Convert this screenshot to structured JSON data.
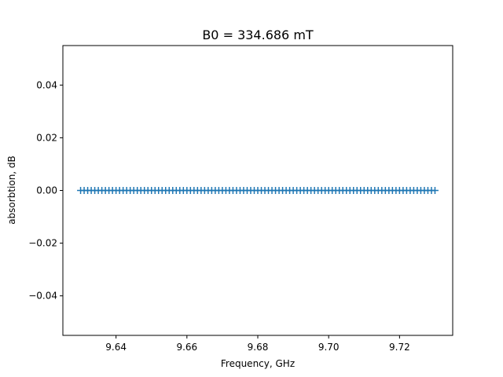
{
  "chart_data": {
    "type": "line",
    "title": "B0 = 334.686 mT",
    "xlabel": "Frequency, GHz",
    "ylabel": "absorbtion, dB",
    "xlim": [
      9.625,
      9.735
    ],
    "ylim": [
      -0.055,
      0.055
    ],
    "x_ticks": [
      9.64,
      9.66,
      9.68,
      9.7,
      9.72
    ],
    "x_tick_labels": [
      "9.64",
      "9.66",
      "9.68",
      "9.70",
      "9.72"
    ],
    "y_ticks": [
      0.04,
      0.02,
      0.0,
      -0.02,
      -0.04
    ],
    "y_tick_labels": [
      "0.04",
      "0.02",
      "0.00",
      "−0.02",
      "−0.04"
    ],
    "grid": false,
    "marker": "+",
    "series": [
      {
        "color": "#1f77b4",
        "x_start": 9.63,
        "x_end": 9.73,
        "num_points": 101,
        "y_value": 0.0
      }
    ]
  }
}
